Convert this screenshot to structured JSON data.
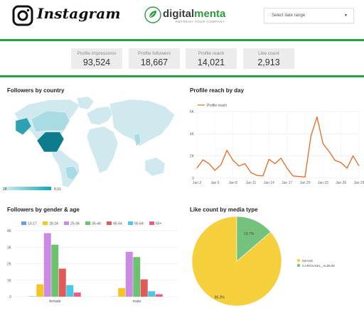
{
  "header": {
    "instagram_word": "Instagram",
    "brand_name_a": "digital",
    "brand_name_b": "menta",
    "brand_tagline": "REFRESH YOUR COMPANY",
    "date_range_placeholder": "Select date range",
    "colors": {
      "accent": "#21a543"
    }
  },
  "kpis": [
    {
      "label": "Profile impressions",
      "value": "93,524"
    },
    {
      "label": "Profile followers",
      "value": "18,667"
    },
    {
      "label": "Profile reach",
      "value": "14,021"
    },
    {
      "label": "Like count",
      "value": "2,913"
    }
  ],
  "chart_data": [
    {
      "type": "map",
      "title": "Followers by country",
      "scale_min_label": "28",
      "scale_max_label": "8,91"
    },
    {
      "type": "line",
      "title": "Profile reach by day",
      "legend": [
        "Profile reach"
      ],
      "color": "#e8681f",
      "x_labels": [
        "Jan 2",
        "Jan 5",
        "Jan 8",
        "Jan 11",
        "Jan 14",
        "Jan 17",
        "Jan 20",
        "Jan 23",
        "Jan 26",
        "Jan 29"
      ],
      "y_tick_labels": [
        "0",
        "2K",
        "4K",
        "6K"
      ],
      "ylim": [
        0,
        6000
      ],
      "x": [
        "Jan 2",
        "Jan 3",
        "Jan 4",
        "Jan 5",
        "Jan 6",
        "Jan 7",
        "Jan 8",
        "Jan 9",
        "Jan 10",
        "Jan 11",
        "Jan 12",
        "Jan 13",
        "Jan 14",
        "Jan 15",
        "Jan 16",
        "Jan 17",
        "Jan 18",
        "Jan 19",
        "Jan 20",
        "Jan 21",
        "Jan 22",
        "Jan 23",
        "Jan 24",
        "Jan 25",
        "Jan 26",
        "Jan 27",
        "Jan 28",
        "Jan 29"
      ],
      "values": [
        900,
        1650,
        1300,
        700,
        1200,
        2500,
        1600,
        1100,
        1300,
        500,
        250,
        200,
        1700,
        1300,
        1800,
        900,
        200,
        150,
        100,
        3800,
        5500,
        3100,
        2400,
        1600,
        1400,
        900,
        2000,
        1100
      ]
    },
    {
      "type": "bar",
      "title": "Followers by gender & age",
      "categories": [
        "female",
        "male"
      ],
      "y_tick_labels": [
        "0",
        "1K",
        "2K",
        "3K",
        "4K"
      ],
      "ylim": [
        0,
        4000
      ],
      "series": [
        {
          "name": "13-17",
          "color": "#6a9de6",
          "values": [
            20,
            10
          ]
        },
        {
          "name": "18-24",
          "color": "#f5c526",
          "values": [
            750,
            520
          ]
        },
        {
          "name": "25-34",
          "color": "#cc89e6",
          "values": [
            3850,
            2720
          ]
        },
        {
          "name": "35-44",
          "color": "#6cc26e",
          "values": [
            3150,
            2400
          ]
        },
        {
          "name": "45-54",
          "color": "#e25b5b",
          "values": [
            1700,
            1050
          ]
        },
        {
          "name": "55-64",
          "color": "#4cc8e6",
          "values": [
            700,
            330
          ]
        },
        {
          "name": "65+",
          "color": "#ef5a86",
          "values": [
            250,
            150
          ]
        }
      ]
    },
    {
      "type": "pie",
      "title": "Like count by media type",
      "slices": [
        {
          "name": "IMAGE",
          "value": 86.3,
          "label": "86.3%",
          "color": "#f5cf3c"
        },
        {
          "name": "CAROUSEL_ALBUM",
          "value": 13.7,
          "label": "13.7%",
          "color": "#74c27d"
        }
      ]
    }
  ]
}
